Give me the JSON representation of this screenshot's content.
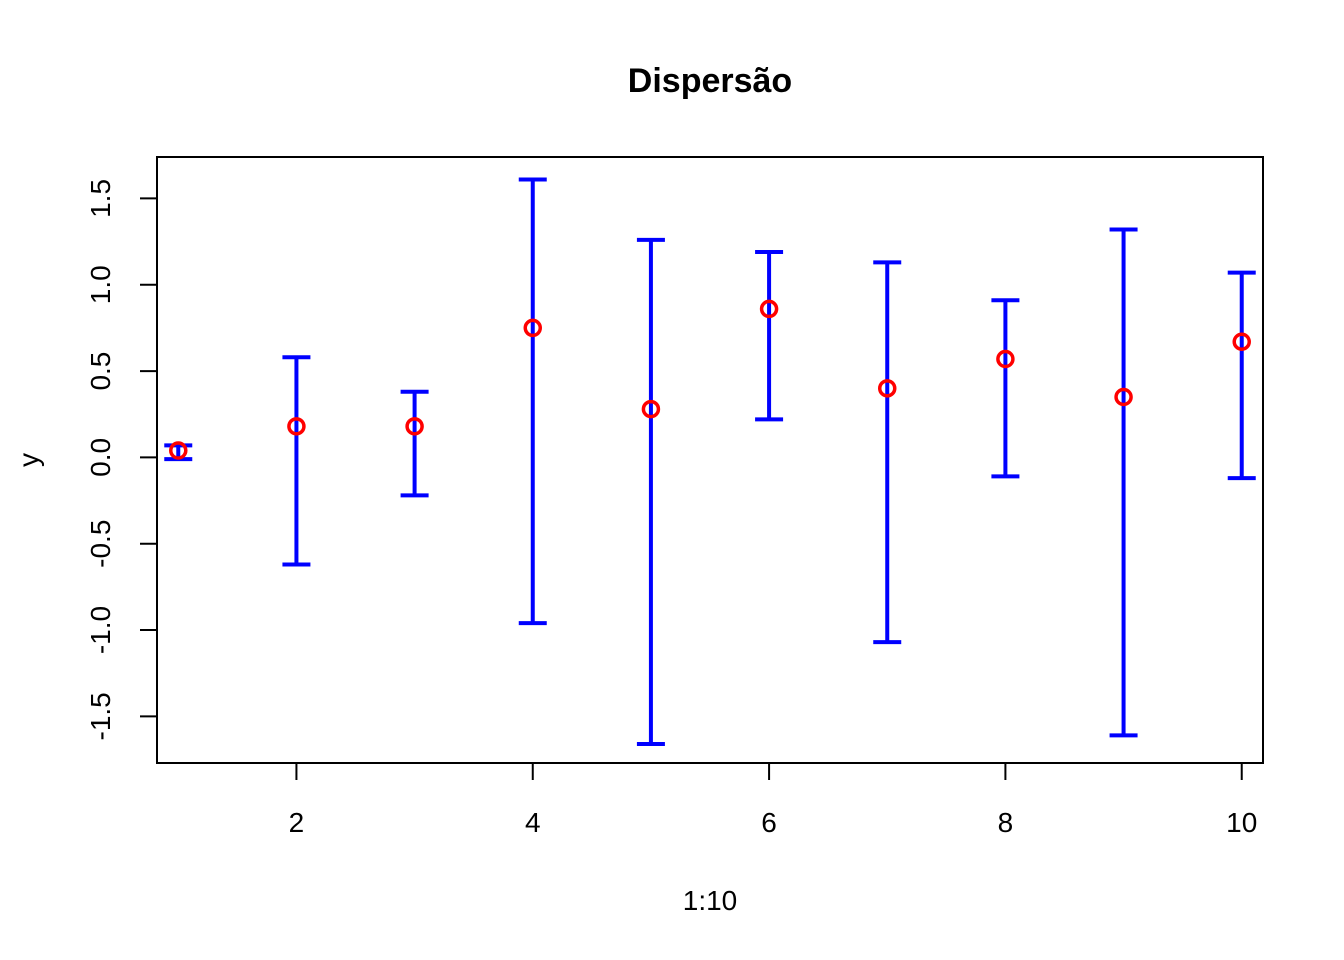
{
  "chart_data": {
    "type": "scatter",
    "title": "Dispersão",
    "xlabel": "1:10",
    "ylabel": "y",
    "x": [
      1,
      2,
      3,
      4,
      5,
      6,
      7,
      8,
      9,
      10
    ],
    "y": [
      0.04,
      0.18,
      0.18,
      0.75,
      0.28,
      0.86,
      0.4,
      0.57,
      0.35,
      0.67
    ],
    "error_lower": [
      -0.01,
      -0.62,
      -0.22,
      -0.96,
      -1.66,
      0.22,
      -1.07,
      -0.11,
      -1.61,
      -0.12
    ],
    "error_upper": [
      0.07,
      0.58,
      0.38,
      1.61,
      1.26,
      1.19,
      1.13,
      0.91,
      1.32,
      1.07
    ],
    "xlim": [
      0.82,
      10.18
    ],
    "ylim": [
      -1.77,
      1.74
    ],
    "xticks": [
      2,
      4,
      6,
      8,
      10
    ],
    "xtick_labels": [
      "2",
      "4",
      "6",
      "8",
      "10"
    ],
    "yticks": [
      -1.5,
      -1.0,
      -0.5,
      0.0,
      0.5,
      1.0,
      1.5
    ],
    "ytick_labels": [
      "-1.5",
      "-1.0",
      "-0.5",
      "0.0",
      "0.5",
      "1.0",
      "1.5"
    ],
    "grid": false,
    "point_color": "#ff0000",
    "errorbar_color": "#0000ff",
    "axis_color": "#000000"
  }
}
